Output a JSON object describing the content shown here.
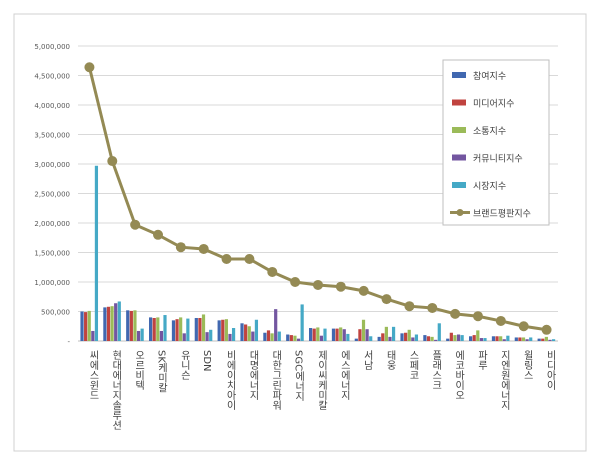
{
  "chart_data": {
    "type": "bar",
    "title": "",
    "xlabel": "",
    "ylabel": "",
    "ylim": [
      0,
      5000000
    ],
    "yticks": [
      "-",
      "500,000",
      "1,000,000",
      "1,500,000",
      "2,000,000",
      "2,500,000",
      "3,000,000",
      "3,500,000",
      "4,000,000",
      "4,500,000",
      "5,000,000"
    ],
    "grid": true,
    "legend_position": "right",
    "categories": [
      "씨에스윈드",
      "현대에너지솔루션",
      "오르비텍",
      "SK케미칼",
      "유니슨",
      "SDN",
      "비에이치아이",
      "대명에너지",
      "대한그린파워",
      "SGC에너지",
      "제이씨케미칼",
      "에스에너지",
      "서남",
      "태웅",
      "스페코",
      "플래스크",
      "에코바이오",
      "파루",
      "지엔원에너지",
      "윌링스",
      "비디아이"
    ],
    "series": [
      {
        "name": "참여지수",
        "type": "bar",
        "color": "#4168b0",
        "values": [
          500000,
          570000,
          520000,
          400000,
          350000,
          390000,
          350000,
          300000,
          140000,
          110000,
          220000,
          210000,
          40000,
          70000,
          130000,
          100000,
          40000,
          80000,
          80000,
          60000,
          40000
        ]
      },
      {
        "name": "미디어지수",
        "type": "bar",
        "color": "#c0433f",
        "values": [
          490000,
          580000,
          510000,
          390000,
          370000,
          390000,
          360000,
          280000,
          180000,
          100000,
          210000,
          210000,
          200000,
          130000,
          140000,
          80000,
          140000,
          100000,
          80000,
          60000,
          40000
        ]
      },
      {
        "name": "소통지수",
        "type": "bar",
        "color": "#9bbb59",
        "values": [
          510000,
          590000,
          520000,
          400000,
          400000,
          450000,
          370000,
          250000,
          130000,
          90000,
          230000,
          230000,
          360000,
          240000,
          190000,
          70000,
          100000,
          180000,
          80000,
          60000,
          70000
        ]
      },
      {
        "name": "커뮤니티지수",
        "type": "bar",
        "color": "#7356a0",
        "values": [
          170000,
          640000,
          170000,
          170000,
          130000,
          150000,
          120000,
          160000,
          540000,
          40000,
          90000,
          200000,
          200000,
          70000,
          60000,
          20000,
          110000,
          50000,
          30000,
          30000,
          20000
        ]
      },
      {
        "name": "시장지수",
        "type": "bar",
        "color": "#45a9c6",
        "values": [
          2970000,
          670000,
          210000,
          440000,
          380000,
          190000,
          220000,
          360000,
          160000,
          620000,
          210000,
          120000,
          80000,
          240000,
          110000,
          300000,
          100000,
          50000,
          90000,
          60000,
          30000
        ]
      },
      {
        "name": "브랜드평판지수",
        "type": "line",
        "color": "#948a54",
        "values": [
          4640000,
          3050000,
          1970000,
          1800000,
          1590000,
          1560000,
          1390000,
          1390000,
          1170000,
          1000000,
          950000,
          920000,
          850000,
          710000,
          590000,
          560000,
          460000,
          420000,
          340000,
          250000,
          190000
        ]
      }
    ]
  }
}
